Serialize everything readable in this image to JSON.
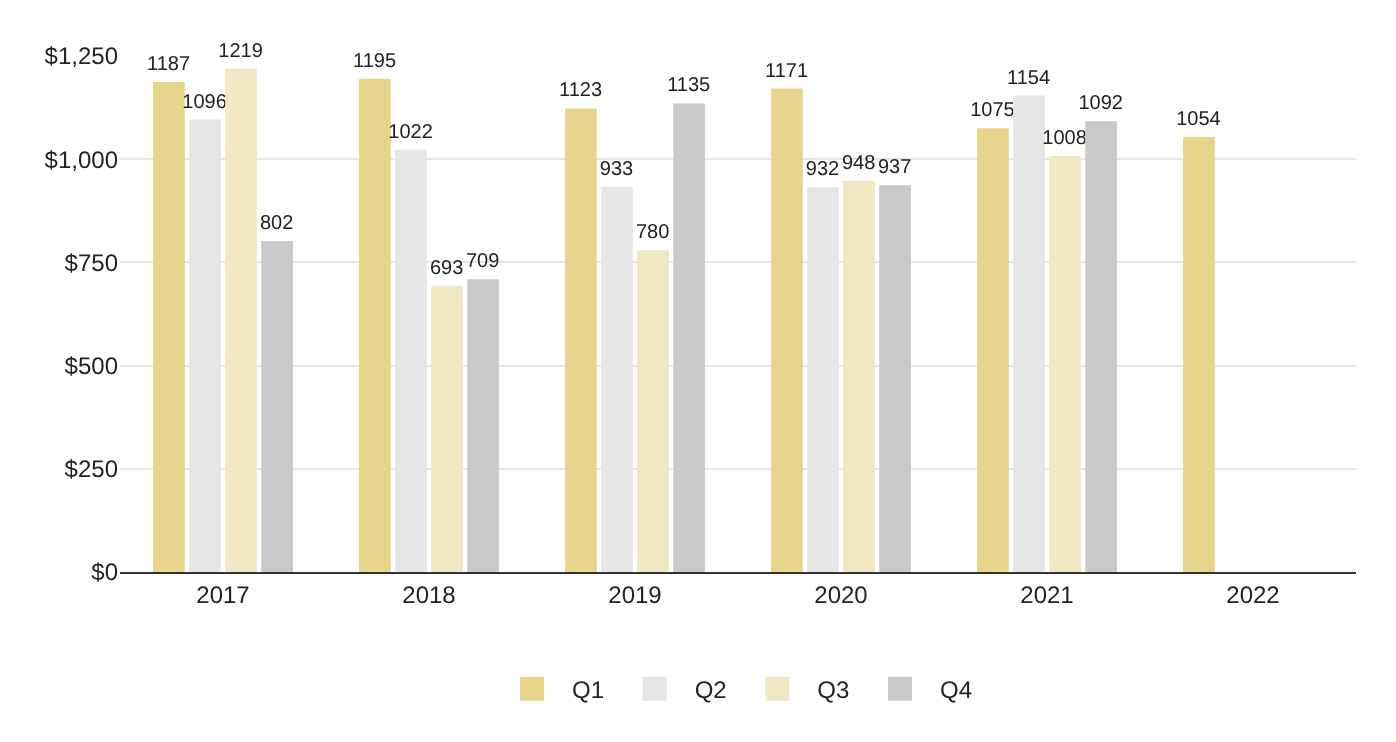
{
  "chart_data": {
    "type": "bar",
    "categories": [
      "2017",
      "2018",
      "2019",
      "2020",
      "2021",
      "2022"
    ],
    "series": [
      {
        "name": "Q1",
        "color": "#e6d58a",
        "values": [
          1187,
          1195,
          1123,
          1171,
          1075,
          1054
        ]
      },
      {
        "name": "Q2",
        "color": "#e6e6e6",
        "values": [
          1096,
          1022,
          933,
          932,
          1154,
          null
        ]
      },
      {
        "name": "Q3",
        "color": "#f1e8c3",
        "values": [
          1219,
          693,
          780,
          948,
          1008,
          null
        ]
      },
      {
        "name": "Q4",
        "color": "#c9c9c9",
        "values": [
          802,
          709,
          1135,
          937,
          1092,
          null
        ]
      }
    ],
    "ylim": [
      0,
      1250
    ],
    "yticks": [
      {
        "value": 0,
        "label": "$0"
      },
      {
        "value": 250,
        "label": "$250"
      },
      {
        "value": 500,
        "label": "$500"
      },
      {
        "value": 750,
        "label": "$750"
      },
      {
        "value": 1000,
        "label": "$1,000"
      },
      {
        "value": 1250,
        "label": "$1,250"
      }
    ],
    "grid": "y",
    "legend": "bottom",
    "data_labels": true
  }
}
